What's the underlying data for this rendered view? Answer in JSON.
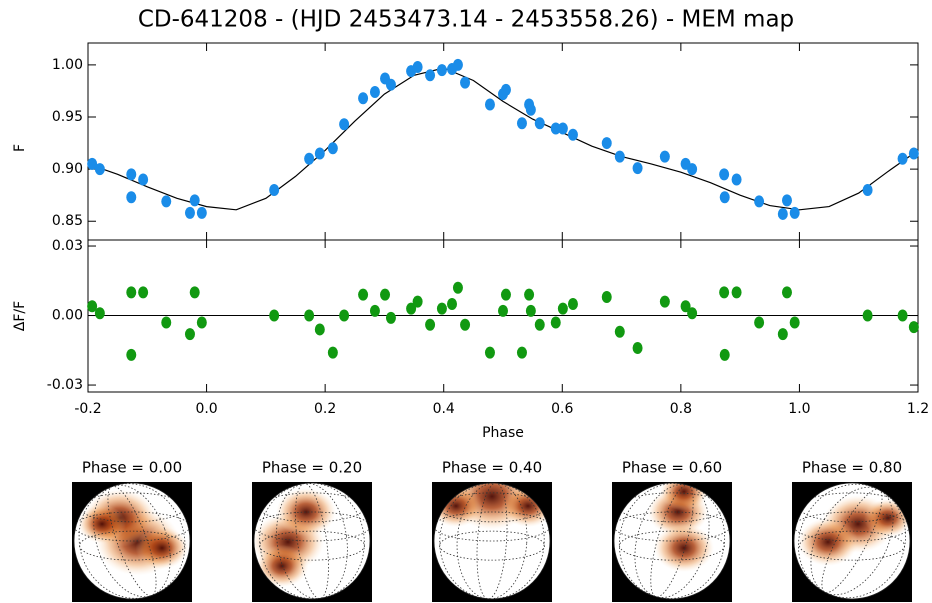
{
  "chart_data": [
    {
      "type": "scatter",
      "title": "CD-641208 - (HJD 2453473.14 - 2453558.26) - MEM map",
      "ylabel": "F",
      "xlim": [
        -0.2,
        1.2
      ],
      "ylim": [
        0.832,
        1.021
      ],
      "yticks": [
        0.85,
        {
          "value": 0.9,
          "label": "0.90"
        },
        0.95,
        {
          "value": 1.0,
          "label": "1.00"
        }
      ],
      "color": "#1a8ce8",
      "x": [
        -0.193,
        -0.18,
        -0.127,
        -0.127,
        -0.107,
        -0.068,
        -0.028,
        -0.02,
        -0.008,
        0.114,
        0.173,
        0.191,
        0.213,
        0.232,
        0.264,
        0.284,
        0.301,
        0.311,
        0.345,
        0.356,
        0.377,
        0.397,
        0.414,
        0.424,
        0.436,
        0.478,
        0.5,
        0.505,
        0.532,
        0.544,
        0.547,
        0.562,
        0.589,
        0.601,
        0.618,
        0.675,
        0.697,
        0.727,
        0.773,
        0.808,
        0.819,
        0.873,
        0.874,
        0.894,
        0.932,
        0.972,
        0.979,
        0.992,
        1.115,
        1.174,
        1.193
      ],
      "values": [
        0.905,
        0.9,
        0.895,
        0.873,
        0.89,
        0.869,
        0.858,
        0.87,
        0.858,
        0.88,
        0.91,
        0.915,
        0.92,
        0.943,
        0.968,
        0.974,
        0.987,
        0.981,
        0.994,
        0.998,
        0.99,
        0.995,
        0.996,
        1.0,
        0.983,
        0.962,
        0.972,
        0.976,
        0.944,
        0.962,
        0.957,
        0.944,
        0.939,
        0.939,
        0.933,
        0.925,
        0.912,
        0.901,
        0.912,
        0.905,
        0.9,
        0.895,
        0.873,
        0.89,
        0.869,
        0.857,
        0.87,
        0.858,
        0.88,
        0.91,
        0.915
      ],
      "model": {
        "color": "#000000",
        "x": [
          -0.2,
          -0.15,
          -0.1,
          -0.05,
          0.0,
          0.05,
          0.1,
          0.15,
          0.2,
          0.25,
          0.3,
          0.35,
          0.4,
          0.45,
          0.5,
          0.55,
          0.6,
          0.65,
          0.7,
          0.75,
          0.8,
          0.85,
          0.9,
          0.95,
          1.0,
          1.05,
          1.1,
          1.15,
          1.2
        ],
        "values": [
          0.905,
          0.895,
          0.883,
          0.872,
          0.864,
          0.861,
          0.872,
          0.893,
          0.918,
          0.946,
          0.972,
          0.99,
          0.997,
          0.985,
          0.965,
          0.948,
          0.935,
          0.922,
          0.912,
          0.905,
          0.897,
          0.887,
          0.875,
          0.865,
          0.861,
          0.864,
          0.877,
          0.898,
          0.918
        ]
      }
    },
    {
      "type": "scatter",
      "ylabel": "ΔF/F",
      "xlabel": "Phase",
      "xlim": [
        -0.2,
        1.2
      ],
      "ylim": [
        -0.033,
        0.0326
      ],
      "xticks": [
        -0.2,
        {
          "value": 0.0,
          "label": "0.0"
        },
        0.2,
        0.4,
        0.6,
        0.8,
        {
          "value": 1.0,
          "label": "1.0"
        },
        1.2
      ],
      "yticks": [
        -0.03,
        {
          "value": 0.0,
          "label": "0.00"
        },
        0.03
      ],
      "color": "#119911",
      "x": [
        -0.193,
        -0.18,
        -0.127,
        -0.127,
        -0.107,
        -0.068,
        -0.028,
        -0.02,
        -0.008,
        0.114,
        0.173,
        0.191,
        0.213,
        0.232,
        0.264,
        0.284,
        0.301,
        0.311,
        0.345,
        0.356,
        0.377,
        0.397,
        0.414,
        0.424,
        0.436,
        0.478,
        0.5,
        0.505,
        0.532,
        0.544,
        0.547,
        0.562,
        0.589,
        0.601,
        0.618,
        0.675,
        0.697,
        0.727,
        0.773,
        0.808,
        0.819,
        0.873,
        0.874,
        0.894,
        0.932,
        0.972,
        0.979,
        0.992,
        1.115,
        1.174,
        1.193
      ],
      "values": [
        0.004,
        0.001,
        0.01,
        -0.017,
        0.01,
        -0.003,
        -0.008,
        0.01,
        -0.003,
        0.0,
        0.0,
        -0.006,
        -0.016,
        0.0,
        0.009,
        0.002,
        0.009,
        -0.001,
        0.003,
        0.006,
        -0.004,
        0.003,
        0.005,
        0.012,
        -0.004,
        -0.016,
        0.002,
        0.009,
        -0.016,
        0.009,
        0.002,
        -0.004,
        -0.003,
        0.003,
        0.005,
        0.008,
        -0.007,
        -0.014,
        0.006,
        0.004,
        0.001,
        0.01,
        -0.017,
        0.01,
        -0.003,
        -0.008,
        0.01,
        -0.003,
        0.0,
        0.0,
        -0.005
      ]
    }
  ],
  "maps": [
    "Phase = 0.00",
    "Phase = 0.20",
    "Phase = 0.40",
    "Phase = 0.60",
    "Phase = 0.80"
  ]
}
